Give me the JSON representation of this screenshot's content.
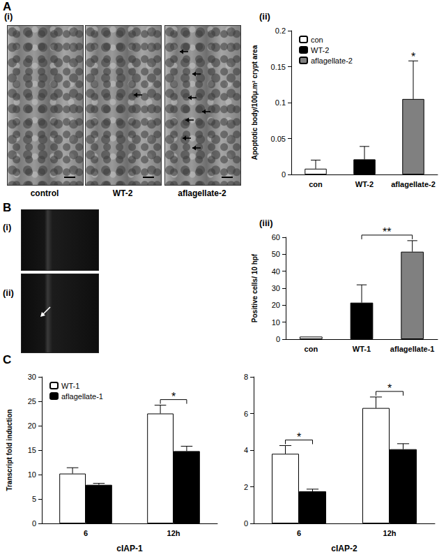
{
  "figure": {
    "panels": [
      {
        "letter": "A",
        "image_label": "(i)",
        "image_captions": [
          "control",
          "WT-2",
          "aflagellate-2"
        ],
        "chart_label": "(ii)"
      },
      {
        "letter": "B",
        "image_labels": [
          "(i)",
          "(ii)"
        ],
        "chart_label": "(iii)"
      },
      {
        "letter": "C"
      }
    ]
  },
  "chart_data": [
    {
      "type": "bar",
      "ylabel": "Apoptotic body/100μ.m² crypt area",
      "categories": [
        "con",
        "WT-2",
        "aflagellate-2"
      ],
      "values": [
        0.008,
        0.021,
        0.105
      ],
      "errors": [
        0.012,
        0.018,
        0.053
      ],
      "colors": [
        "#ffffff",
        "#000000",
        "#808080"
      ],
      "ylim": [
        0,
        0.2
      ],
      "yticks": [
        0,
        0.05,
        0.1,
        0.15,
        0.2
      ],
      "legend": "upper left",
      "annotations": [
        {
          "text": "*",
          "at": "aflagellate-2"
        }
      ]
    },
    {
      "type": "bar",
      "ylabel": "Positive cells/ 10 hpf",
      "categories": [
        "con",
        "WT-1",
        "aflagellate-1"
      ],
      "values": [
        1.5,
        21.5,
        51.5
      ],
      "errors": [
        null,
        10.5,
        6.5
      ],
      "colors": [
        "#ffffff",
        "#000000",
        "#808080"
      ],
      "ylim": [
        0,
        60
      ],
      "yticks": [
        0,
        10,
        20,
        30,
        40,
        50,
        60
      ],
      "annotations": [
        {
          "text": "**",
          "between": [
            "WT-1",
            "aflagellate-1"
          ]
        }
      ]
    },
    {
      "type": "bar",
      "xlabel": "cIAP-1",
      "ylabel": "Transcript fold induction",
      "categories": [
        "6",
        "12h"
      ],
      "series": [
        {
          "name": "WT-1",
          "color": "#ffffff",
          "values": [
            10.2,
            22.5
          ],
          "errors": [
            1.2,
            1.7
          ]
        },
        {
          "name": "aflagellate-1",
          "color": "#000000",
          "values": [
            7.9,
            14.8
          ],
          "errors": [
            0.3,
            1.0
          ]
        }
      ],
      "ylim": [
        0,
        30
      ],
      "yticks": [
        0,
        5,
        10,
        15,
        20,
        25,
        30
      ],
      "legend": "upper left",
      "annotations": [
        {
          "text": "*",
          "at": "12h"
        }
      ]
    },
    {
      "type": "bar",
      "xlabel": "cIAP-2",
      "categories": [
        "6",
        "12h"
      ],
      "series": [
        {
          "name": "WT-1",
          "color": "#ffffff",
          "values": [
            3.8,
            6.3
          ],
          "errors": [
            0.45,
            0.6
          ]
        },
        {
          "name": "aflagellate-1",
          "color": "#000000",
          "values": [
            1.75,
            4.05
          ],
          "errors": [
            0.12,
            0.3
          ]
        }
      ],
      "ylim": [
        0,
        8
      ],
      "yticks": [
        0,
        2,
        4,
        6,
        8
      ],
      "annotations": [
        {
          "text": "*",
          "at": "6"
        },
        {
          "text": "*",
          "at": "12h"
        }
      ]
    }
  ]
}
